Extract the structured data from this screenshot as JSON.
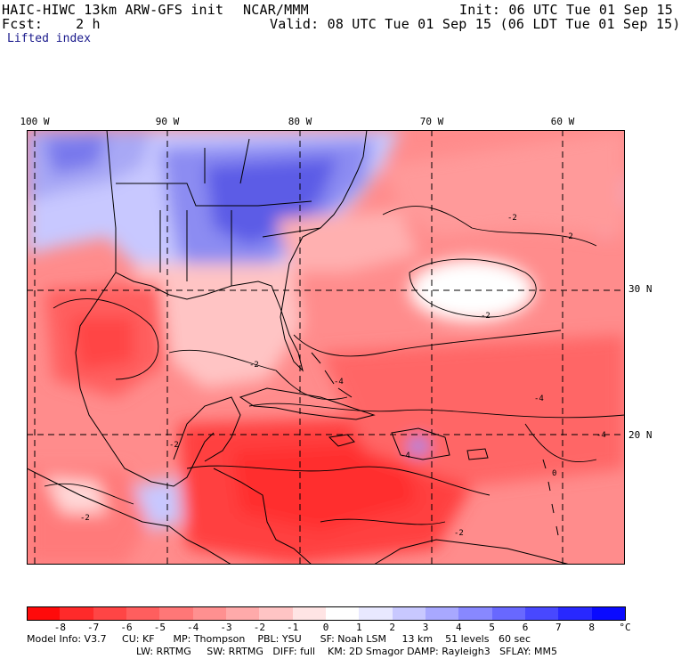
{
  "header": {
    "model_title": "HAIC-HIWC 13km ARW-GFS init",
    "org": "NCAR/MMM",
    "init": "Init: 06 UTC Tue 01 Sep 15",
    "fcst": "Fcst:    2 h",
    "valid": "Valid: 08 UTC Tue 01 Sep 15 (06 LDT Tue 01 Sep 15)",
    "field": "Lifted index"
  },
  "map": {
    "lon_labels": [
      "100 W",
      "90 W",
      "80 W",
      "70 W",
      "60 W"
    ],
    "lat_labels": [
      "30 N",
      "20 N"
    ],
    "contour_labels": [
      "-2",
      "-2",
      "-2",
      "-4",
      "-4",
      "-2",
      "-2",
      "-4",
      "-2",
      "-4",
      "-2",
      "0"
    ]
  },
  "colorbar": {
    "tick_labels": [
      "-8",
      "-7",
      "-6",
      "-5",
      "-4",
      "-3",
      "-2",
      "-1",
      "0",
      "1",
      "2",
      "3",
      "4",
      "5",
      "6",
      "7",
      "8"
    ],
    "unit": "°C",
    "colors": [
      "#ff0a0a",
      "#ff2a2a",
      "#ff4545",
      "#ff5e5e",
      "#ff7777",
      "#ff9090",
      "#ffaaaa",
      "#ffc4c4",
      "#ffe4e4",
      "#ffffff",
      "#e8e8ff",
      "#c8c8ff",
      "#a8a8ff",
      "#8888ff",
      "#6868ff",
      "#4848ff",
      "#2828ff",
      "#0a0aff"
    ]
  },
  "footer": {
    "line1": "Model Info: V3.7     CU: KF      MP: Thompson    PBL: YSU      SF: Noah LSM     13 km    51 levels   60 sec",
    "line2": "LW: RRTMG     SW: RRTMG   DIFF: full    KM: 2D Smagor DAMP: Rayleigh3   SFLAY: MM5"
  }
}
